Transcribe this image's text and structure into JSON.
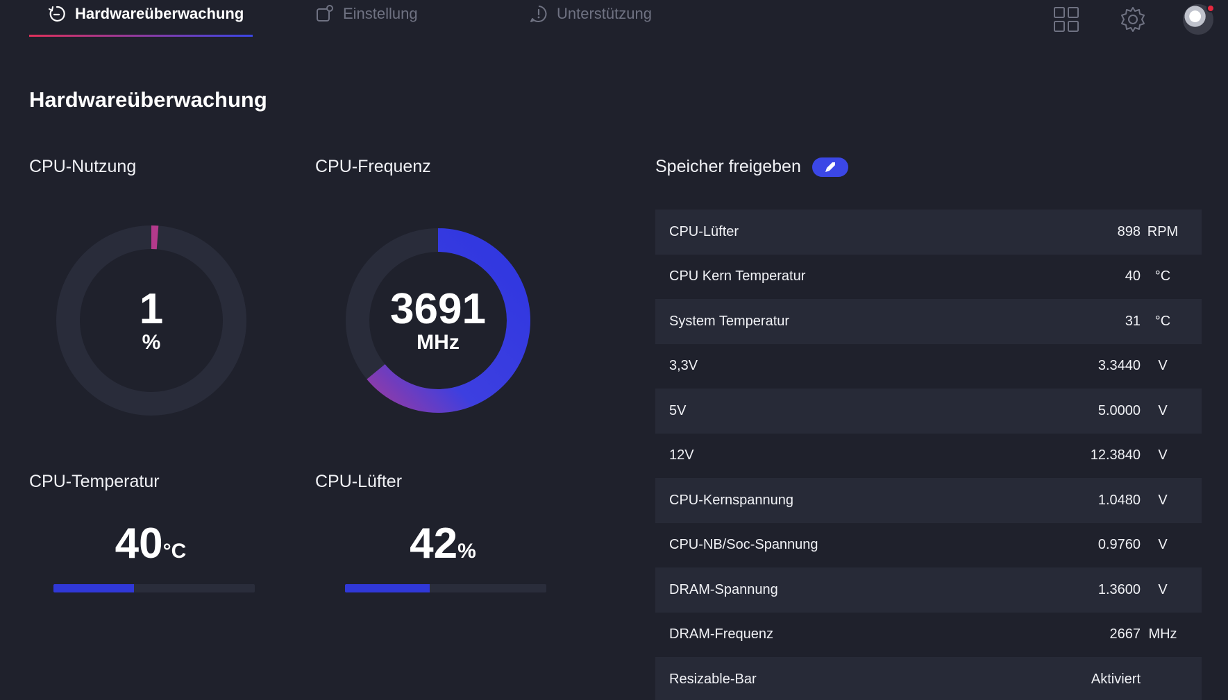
{
  "nav": {
    "tabs": [
      {
        "label": "Hardwareüberwachung",
        "active": true,
        "icon": "gauge-refresh-icon"
      },
      {
        "label": "Einstellung",
        "active": false,
        "icon": "settings-square-icon"
      },
      {
        "label": "Unterstützung",
        "active": false,
        "icon": "alert-bubble-icon"
      }
    ],
    "right_icons": [
      "grid-icon",
      "gear-icon",
      "avatar"
    ]
  },
  "page": {
    "title": "Hardwareüberwachung"
  },
  "cpu_usage": {
    "label": "CPU-Nutzung",
    "value": "1",
    "unit": "%",
    "fraction": 0.01
  },
  "cpu_freq": {
    "label": "CPU-Frequenz",
    "value": "3691",
    "unit": "MHz",
    "fraction": 0.64
  },
  "cpu_temp": {
    "label": "CPU-Temperatur",
    "value": "40",
    "unit": "°C",
    "bar_fraction": 0.4
  },
  "cpu_fan": {
    "label": "CPU-Lüfter",
    "value": "42",
    "unit": "%",
    "bar_fraction": 0.42
  },
  "free_memory": {
    "label": "Speicher freigeben"
  },
  "stats": [
    {
      "label": "CPU-Lüfter",
      "value": "898",
      "unit": "RPM"
    },
    {
      "label": "CPU Kern Temperatur",
      "value": "40",
      "unit": "°C"
    },
    {
      "label": "System Temperatur",
      "value": "31",
      "unit": "°C"
    },
    {
      "label": "3,3V",
      "value": "3.3440",
      "unit": "V"
    },
    {
      "label": "5V",
      "value": "5.0000",
      "unit": "V"
    },
    {
      "label": "12V",
      "value": "12.3840",
      "unit": "V"
    },
    {
      "label": "CPU-Kernspannung",
      "value": "1.0480",
      "unit": "V"
    },
    {
      "label": "CPU-NB/Soc-Spannung",
      "value": "0.9760",
      "unit": "V"
    },
    {
      "label": "DRAM-Spannung",
      "value": "1.3600",
      "unit": "V"
    },
    {
      "label": "DRAM-Frequenz",
      "value": "2667",
      "unit": "MHz"
    },
    {
      "label": "Resizable-Bar",
      "value": "Aktiviert",
      "unit": ""
    }
  ],
  "colors": {
    "background": "#1f212c",
    "accent_blue": "#3038d8",
    "accent_red": "#e0305a",
    "track": "#2a2d3b"
  }
}
